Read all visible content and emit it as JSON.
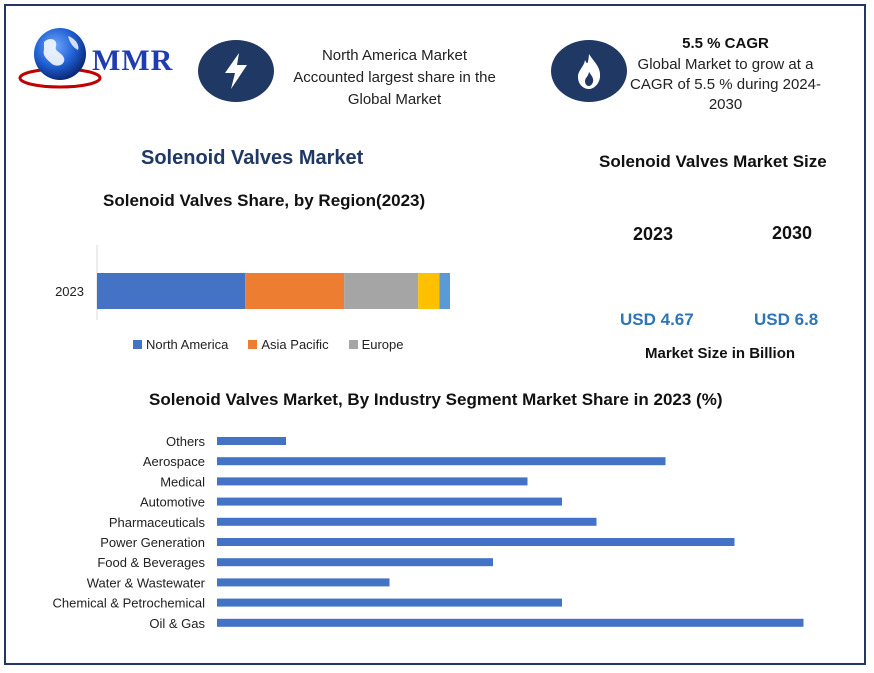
{
  "brand": {
    "logo_text": "MMR"
  },
  "info1": {
    "icon": "lightning-icon",
    "line1": "North America Market",
    "line2": "Accounted largest share in the",
    "line3": "Global Market"
  },
  "info2": {
    "icon": "flame-icon",
    "title": "5.5 % CAGR",
    "line1": "Global Market to grow at a",
    "line2": "CAGR of 5.5 % during 2024-",
    "line3": "2030"
  },
  "market_title": "Solenoid Valves Market",
  "size_panel": {
    "title": "Solenoid Valves Market Size",
    "year1": "2023",
    "year2": "2030",
    "value1": "USD 4.67",
    "value2": "USD 6.8",
    "unit": "Market Size in Billion"
  },
  "colors": {
    "navy": "#1f3864",
    "bar_blue": "#4472c4",
    "orange": "#ed7d31",
    "gray": "#a5a5a5",
    "gold": "#ffc000",
    "light_blue": "#5b9bd5"
  },
  "chart_data": [
    {
      "type": "bar",
      "orientation": "horizontal-stacked",
      "title": "Solenoid Valves Share, by Region(2023)",
      "categories": [
        "2023"
      ],
      "series": [
        {
          "name": "North America",
          "values": [
            42
          ],
          "color": "#4472c4"
        },
        {
          "name": "Asia Pacific",
          "values": [
            28
          ],
          "color": "#ed7d31"
        },
        {
          "name": "Europe",
          "values": [
            21
          ],
          "color": "#a5a5a5"
        },
        {
          "values": [
            6
          ],
          "color": "#ffc000"
        },
        {
          "values": [
            3
          ],
          "color": "#5b9bd5"
        }
      ],
      "legend": "bottom",
      "grid": false
    },
    {
      "type": "bar",
      "orientation": "horizontal",
      "title": "Solenoid Valves Market, By Industry Segment Market Share in 2023 (%)",
      "categories": [
        "Others",
        "Aerospace",
        "Medical",
        "Automotive",
        "Pharmaceuticals",
        "Power Generation",
        "Food & Beverages",
        "Water & Wastewater",
        "Chemical & Petrochemical",
        "Oil & Gas"
      ],
      "values": [
        6,
        39,
        27,
        30,
        33,
        45,
        24,
        15,
        30,
        51
      ],
      "color": "#4472c4",
      "grid": false
    }
  ]
}
